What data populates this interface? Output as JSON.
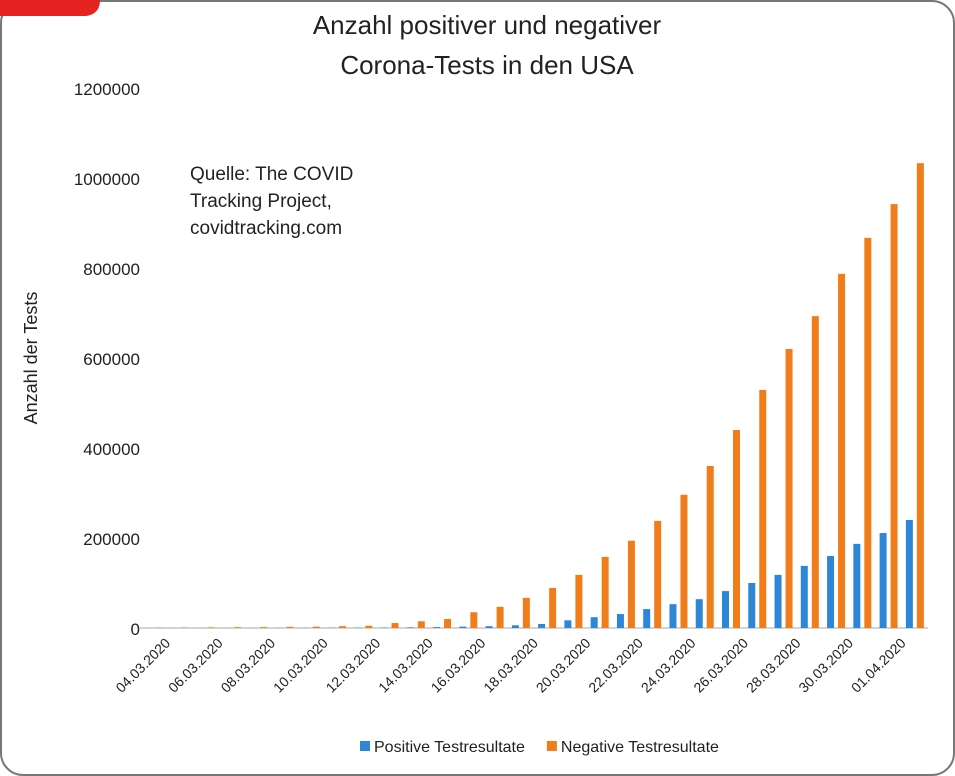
{
  "chart_data": {
    "type": "bar",
    "title": [
      "Anzahl positiver und negativer",
      "Corona-Tests in den USA"
    ],
    "annotation": [
      "Quelle: The COVID",
      "Tracking Project,",
      "covidtracking.com"
    ],
    "ylabel": "Anzahl der Tests",
    "categories": [
      "04.03.2020",
      null,
      "06.03.2020",
      null,
      "08.03.2020",
      null,
      "10.03.2020",
      null,
      "12.03.2020",
      null,
      "14.03.2020",
      null,
      "16.03.2020",
      null,
      "18.03.2020",
      null,
      "20.03.2020",
      null,
      "22.03.2020",
      null,
      "24.03.2020",
      null,
      "26.03.2020",
      null,
      "28.03.2020",
      null,
      "30.03.2020",
      null,
      "01.04.2020",
      null
    ],
    "series": [
      {
        "name": "Positive Testresultate",
        "color": "#2e86d6",
        "values": [
          100,
          150,
          200,
          250,
          300,
          400,
          500,
          600,
          800,
          1000,
          1500,
          2000,
          3000,
          4000,
          6000,
          9000,
          17000,
          24000,
          31000,
          42000,
          53000,
          64000,
          82000,
          100000,
          118000,
          138000,
          160000,
          187000,
          211000,
          240000
        ]
      },
      {
        "name": "Negative Testresultate",
        "color": "#f07d1a",
        "values": [
          1000,
          1200,
          1500,
          1800,
          2000,
          2500,
          3000,
          4000,
          5000,
          11000,
          15000,
          20000,
          35000,
          47000,
          67000,
          89000,
          118000,
          158000,
          194000,
          238000,
          296000,
          360000,
          440000,
          529000,
          620000,
          693000,
          787000,
          867000,
          942000,
          1033000
        ]
      }
    ],
    "ylim": [
      0,
      1200000
    ],
    "yticks": [
      0,
      200000,
      400000,
      600000,
      800000,
      1000000,
      1200000
    ],
    "grid": false,
    "legend": "bottom"
  }
}
